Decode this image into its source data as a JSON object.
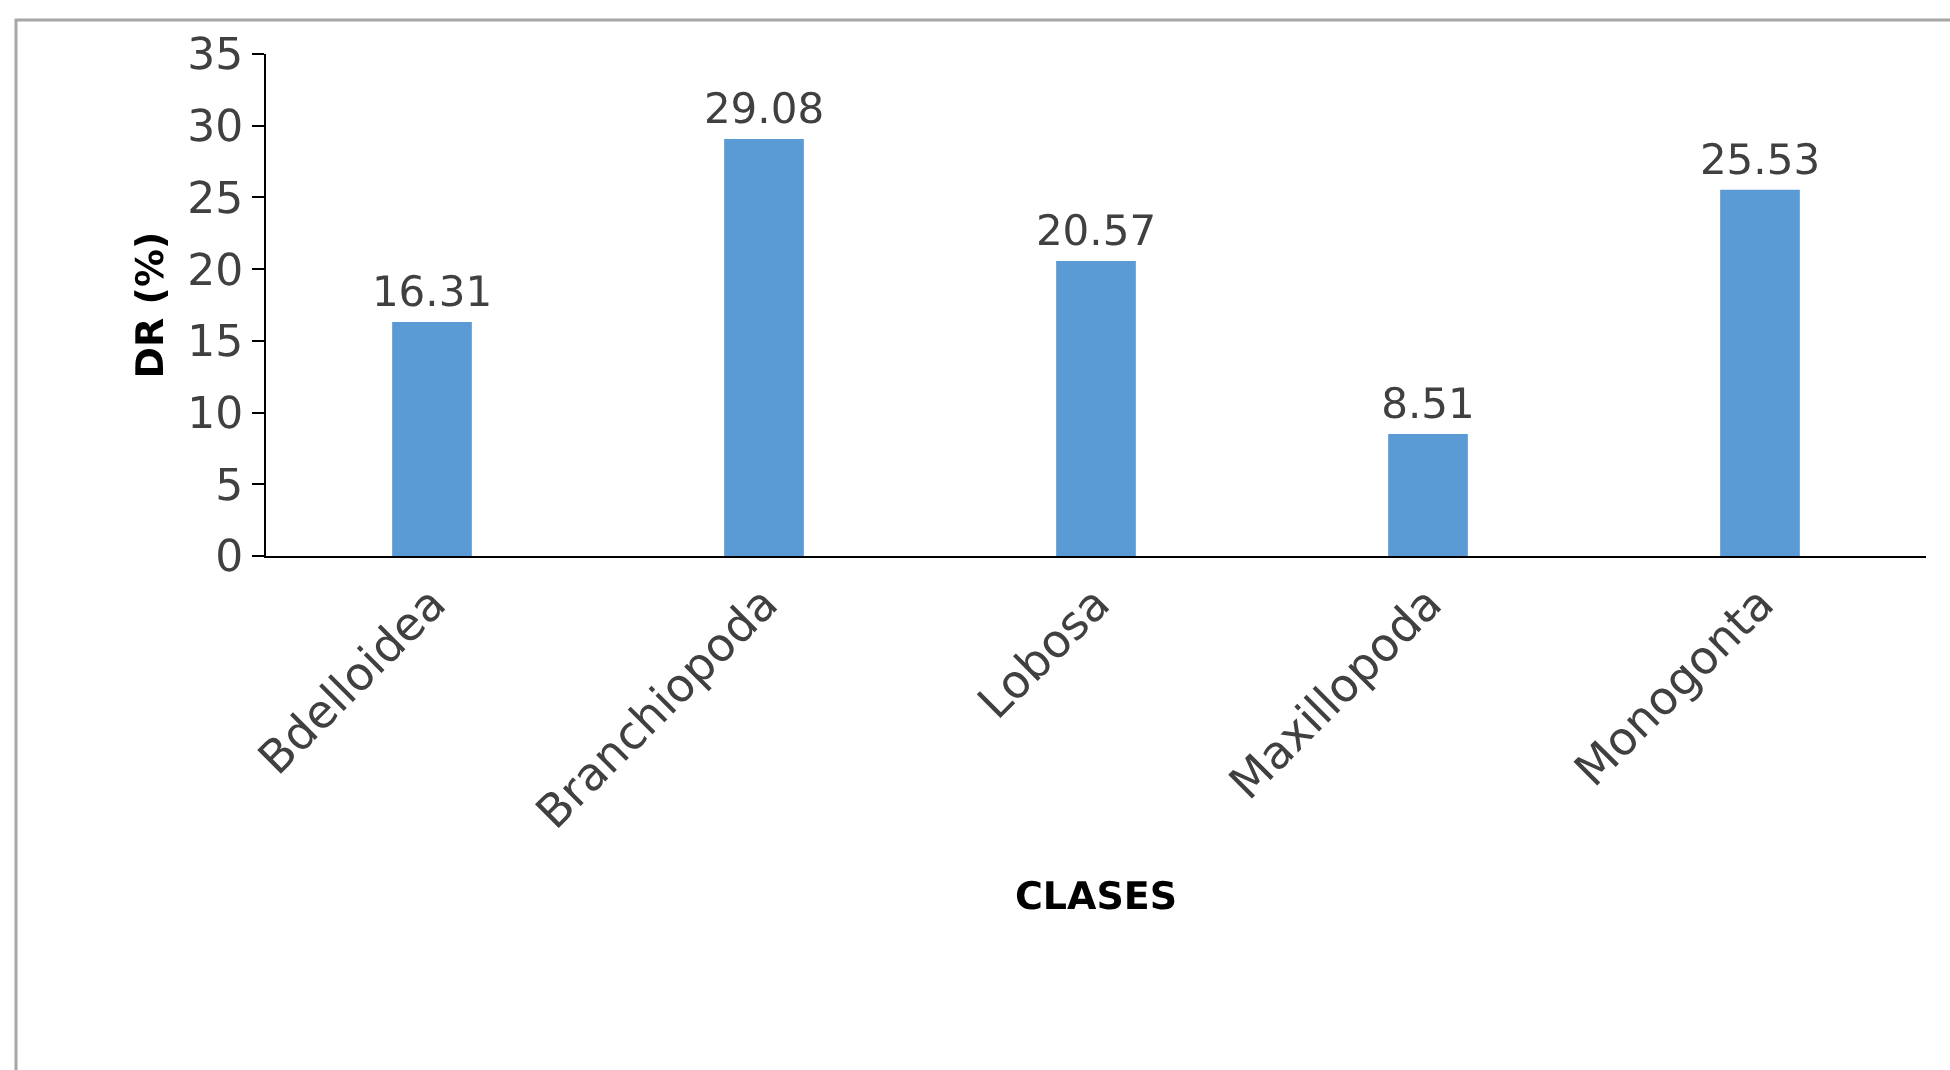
{
  "chart_data": {
    "type": "bar",
    "categories": [
      "Bdelloidea",
      "Branchiopoda",
      "Lobosa",
      "Maxillopoda",
      "Monogonta"
    ],
    "values": [
      16.31,
      29.08,
      20.57,
      8.51,
      25.53
    ],
    "color": "#5b9bd5",
    "xlabel": "CLASES",
    "ylabel": "DR (%)",
    "ylim": [
      0,
      35
    ],
    "yticks": [
      0,
      5,
      10,
      15,
      20,
      25,
      30,
      35
    ],
    "data_labels": true
  }
}
